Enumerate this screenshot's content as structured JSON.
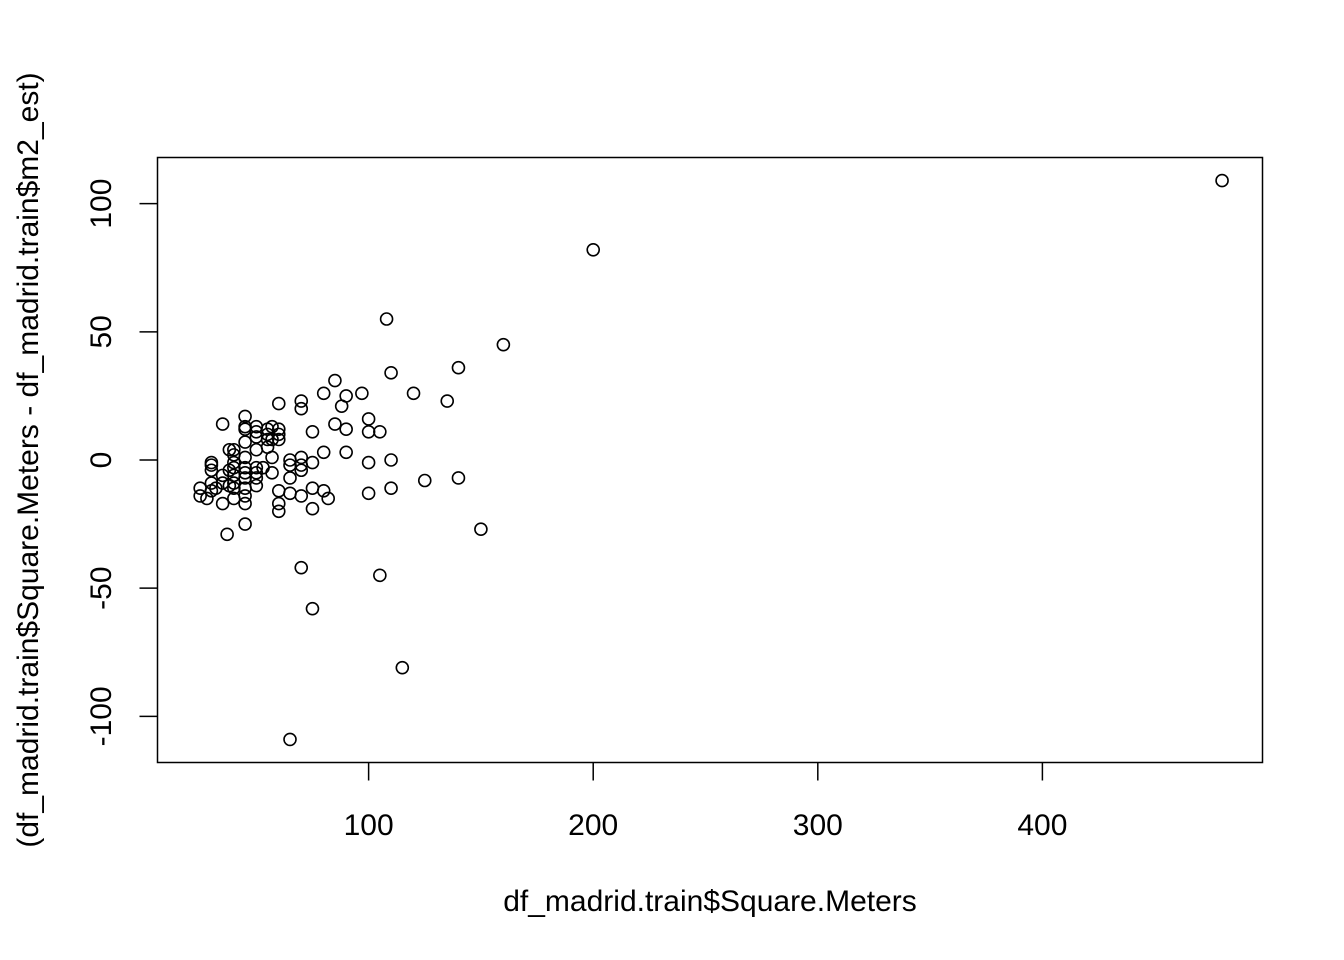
{
  "chart_data": {
    "type": "scatter",
    "title": "",
    "xlabel": "df_madrid.train$Square.Meters",
    "ylabel": "(df_madrid.train$Square.Meters - df_madrid.train$m2_est)",
    "xlim": [
      6,
      498
    ],
    "ylim": [
      -118,
      118
    ],
    "xticks": [
      100,
      200,
      300,
      400
    ],
    "yticks": [
      -100,
      -50,
      0,
      50,
      100
    ],
    "xtick_labels": [
      "100",
      "200",
      "300",
      "400"
    ],
    "ytick_labels": [
      "-100",
      "-50",
      "0",
      "50",
      "100"
    ],
    "grid": false,
    "marker": "open-circle",
    "points": [
      [
        480,
        109
      ],
      [
        200,
        82
      ],
      [
        160,
        45
      ],
      [
        140,
        36
      ],
      [
        135,
        23
      ],
      [
        120,
        26
      ],
      [
        110,
        34
      ],
      [
        108,
        55
      ],
      [
        115,
        -81
      ],
      [
        105,
        -45
      ],
      [
        150,
        -27
      ],
      [
        140,
        -7
      ],
      [
        125,
        -8
      ],
      [
        110,
        -11
      ],
      [
        110,
        0
      ],
      [
        105,
        11
      ],
      [
        100,
        11
      ],
      [
        100,
        16
      ],
      [
        100,
        -1
      ],
      [
        100,
        -13
      ],
      [
        97,
        26
      ],
      [
        90,
        25
      ],
      [
        88,
        21
      ],
      [
        85,
        31
      ],
      [
        85,
        14
      ],
      [
        90,
        12
      ],
      [
        90,
        3
      ],
      [
        80,
        26
      ],
      [
        80,
        3
      ],
      [
        80,
        -12
      ],
      [
        82,
        -15
      ],
      [
        75,
        11
      ],
      [
        75,
        -1
      ],
      [
        75,
        -11
      ],
      [
        75,
        -19
      ],
      [
        75,
        -58
      ],
      [
        70,
        23
      ],
      [
        70,
        20
      ],
      [
        70,
        1
      ],
      [
        70,
        -2
      ],
      [
        70,
        -4
      ],
      [
        70,
        -14
      ],
      [
        70,
        -42
      ],
      [
        65,
        0
      ],
      [
        65,
        -2
      ],
      [
        65,
        -7
      ],
      [
        65,
        -13
      ],
      [
        65,
        -109
      ],
      [
        60,
        22
      ],
      [
        60,
        12
      ],
      [
        60,
        10
      ],
      [
        60,
        8
      ],
      [
        60,
        -12
      ],
      [
        60,
        -17
      ],
      [
        60,
        -20
      ],
      [
        57,
        13
      ],
      [
        57,
        8
      ],
      [
        57,
        1
      ],
      [
        57,
        -5
      ],
      [
        55,
        12
      ],
      [
        55,
        10
      ],
      [
        55,
        8
      ],
      [
        55,
        5
      ],
      [
        53,
        -3
      ],
      [
        50,
        13
      ],
      [
        50,
        11
      ],
      [
        50,
        9
      ],
      [
        50,
        4
      ],
      [
        50,
        -3
      ],
      [
        50,
        -5
      ],
      [
        50,
        -7
      ],
      [
        50,
        -10
      ],
      [
        45,
        17
      ],
      [
        45,
        13
      ],
      [
        45,
        12
      ],
      [
        45,
        7
      ],
      [
        45,
        1
      ],
      [
        45,
        -3
      ],
      [
        45,
        -5
      ],
      [
        45,
        -7
      ],
      [
        45,
        -11
      ],
      [
        45,
        -14
      ],
      [
        45,
        -17
      ],
      [
        45,
        -25
      ],
      [
        40,
        4
      ],
      [
        40,
        2
      ],
      [
        40,
        -1
      ],
      [
        40,
        -3
      ],
      [
        40,
        -6
      ],
      [
        40,
        -9
      ],
      [
        40,
        -11
      ],
      [
        40,
        -15
      ],
      [
        38,
        4
      ],
      [
        38,
        -4
      ],
      [
        38,
        -10
      ],
      [
        37,
        -29
      ],
      [
        35,
        14
      ],
      [
        35,
        -6
      ],
      [
        35,
        -9
      ],
      [
        35,
        -17
      ],
      [
        32,
        -11
      ],
      [
        30,
        -1
      ],
      [
        30,
        -2
      ],
      [
        30,
        -4
      ],
      [
        30,
        -9
      ],
      [
        30,
        -12
      ],
      [
        28,
        -15
      ],
      [
        25,
        -11
      ],
      [
        25,
        -14
      ]
    ]
  }
}
